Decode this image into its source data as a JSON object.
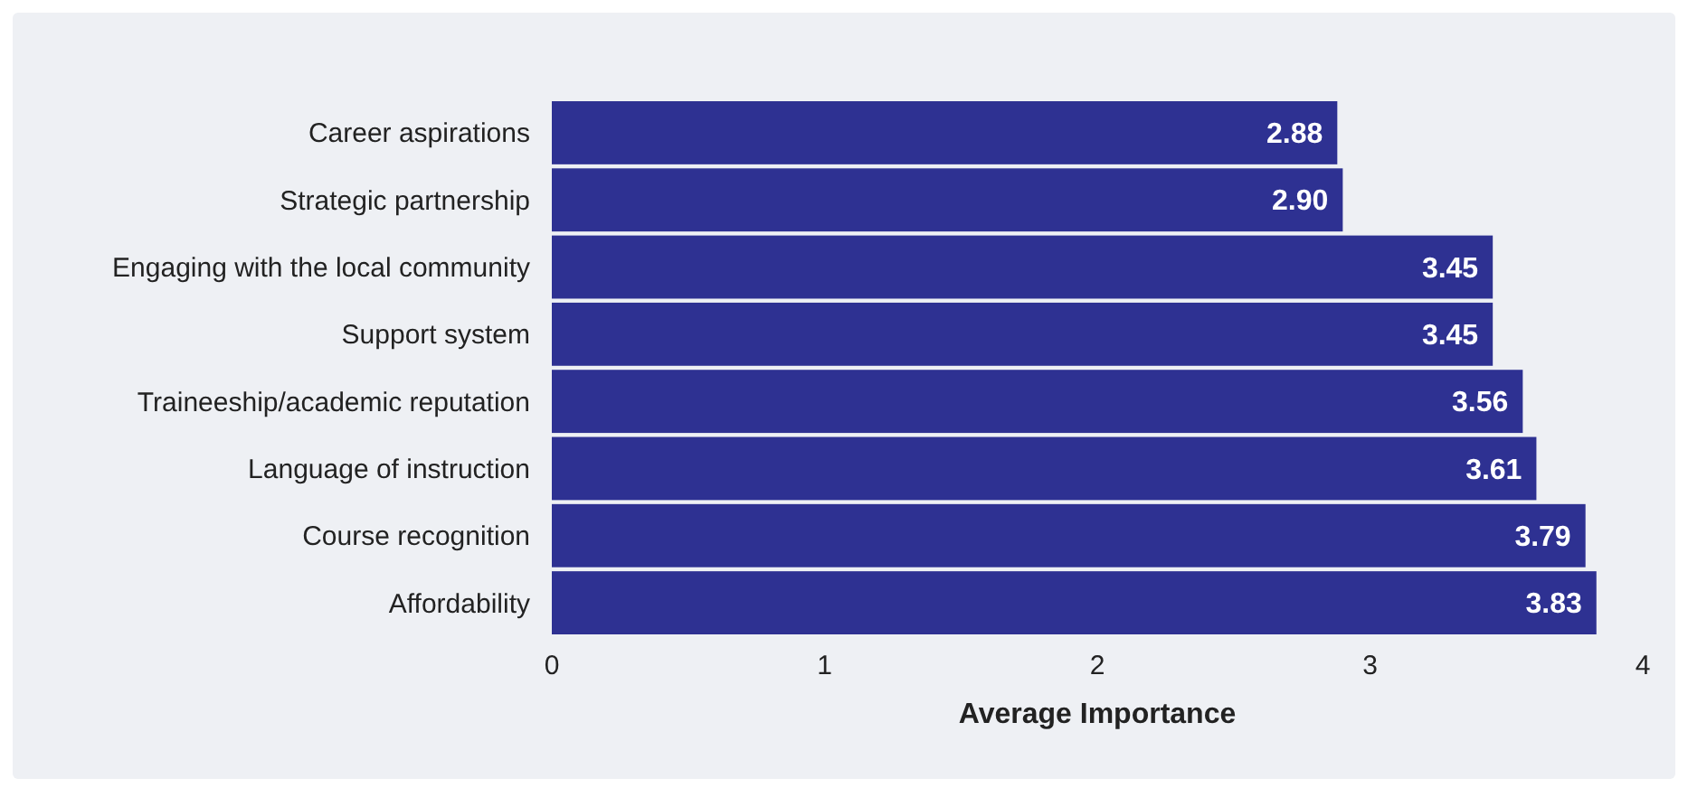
{
  "chart_data": {
    "type": "bar",
    "orientation": "horizontal",
    "xlabel": "Average Importance",
    "categories": [
      "Career aspirations",
      "Strategic partnership",
      "Engaging with the local community",
      "Support system",
      "Traineeship/academic reputation",
      "Language of instruction",
      "Course recognition",
      "Affordability"
    ],
    "values": [
      2.88,
      2.9,
      3.45,
      3.45,
      3.56,
      3.61,
      3.79,
      3.83
    ],
    "value_labels": [
      "2.88",
      "2.90",
      "3.45",
      "3.45",
      "3.56",
      "3.61",
      "3.79",
      "3.83"
    ],
    "color": "#2e3192",
    "xlim": [
      0,
      4
    ],
    "xticks": [
      0,
      1,
      2,
      3,
      4
    ]
  }
}
